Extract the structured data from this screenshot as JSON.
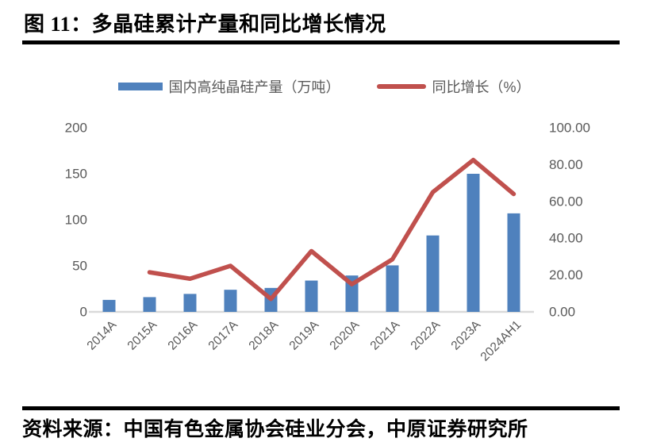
{
  "header": {
    "title": "图 11：多晶硅累计产量和同比增长情况"
  },
  "legend": [
    {
      "label": "国内高纯晶硅产量（万吨）",
      "color": "#4F81BD",
      "swatch": "bar-swatch"
    },
    {
      "label": "同比增长（%）",
      "color": "#C0504D",
      "swatch": "line-swatch"
    }
  ],
  "chart_data": {
    "type": "bar+line combo",
    "categories": [
      "2014A",
      "2015A",
      "2016A",
      "2017A",
      "2018A",
      "2019A",
      "2020A",
      "2021A",
      "2022A",
      "2023A",
      "2024AH1"
    ],
    "series": [
      {
        "name": "国内高纯晶硅产量（万吨）",
        "type": "bar",
        "axis": "left",
        "color": "#4F81BD",
        "values": [
          13,
          16,
          19.5,
          24,
          26,
          34,
          39.5,
          50.5,
          83,
          150,
          107
        ]
      },
      {
        "name": "同比增长（%）",
        "type": "line",
        "axis": "right",
        "color": "#C0504D",
        "values": [
          null,
          21.5,
          18,
          25,
          7,
          33,
          15,
          28.5,
          65,
          82.5,
          64
        ]
      }
    ],
    "left_axis": {
      "min": 0,
      "max": 200,
      "tick_labels": [
        "0",
        "50",
        "100",
        "150",
        "200"
      ]
    },
    "right_axis": {
      "min": 0,
      "max": 100,
      "tick_labels": [
        "0.00",
        "20.00",
        "40.00",
        "60.00",
        "80.00",
        "100.00"
      ]
    },
    "legend_position": "top",
    "grid": false,
    "styles": {
      "axis_text_color": "#595959",
      "baseline_color": "#D9D9D9"
    }
  },
  "footer": {
    "source": "资料来源：中国有色金属协会硅业分会，中原证券研究所"
  }
}
